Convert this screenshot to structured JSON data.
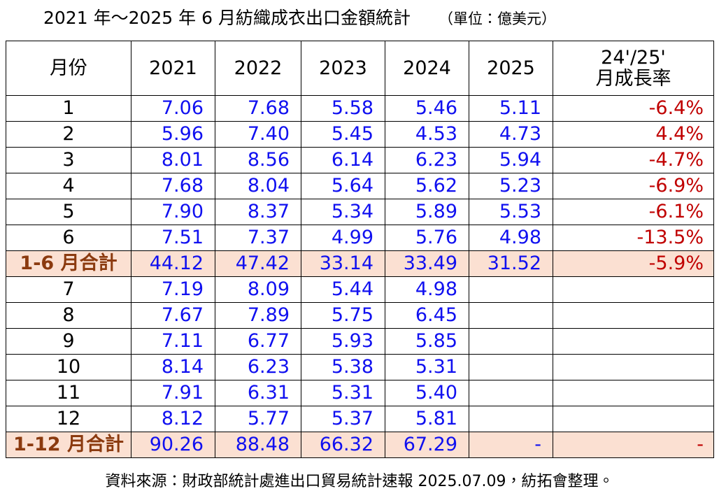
{
  "title": "2021 年～2025 年 6 月紡織成衣出口金額統計",
  "unit": "（單位：億美元）",
  "table": {
    "header": [
      "月份",
      "2021",
      "2022",
      "2023",
      "2024",
      "2025",
      [
        "24'/25'",
        "月成長率"
      ]
    ],
    "rows": [
      {
        "cells": [
          "1",
          "7.06",
          "7.68",
          "5.58",
          "5.46",
          "5.11",
          "-6.4%"
        ]
      },
      {
        "cells": [
          "2",
          "5.96",
          "7.40",
          "5.45",
          "4.53",
          "4.73",
          "4.4%"
        ]
      },
      {
        "cells": [
          "3",
          "8.01",
          "8.56",
          "6.14",
          "6.23",
          "5.94",
          "-4.7%"
        ]
      },
      {
        "cells": [
          "4",
          "7.68",
          "8.04",
          "5.64",
          "5.62",
          "5.23",
          "-6.9%"
        ]
      },
      {
        "cells": [
          "5",
          "7.90",
          "8.37",
          "5.34",
          "5.89",
          "5.53",
          "-6.1%"
        ]
      },
      {
        "cells": [
          "6",
          "7.51",
          "7.37",
          "4.99",
          "5.76",
          "4.98",
          "-13.5%"
        ]
      },
      {
        "cells": [
          "1-6 月合計",
          "44.12",
          "47.42",
          "33.14",
          "33.49",
          "31.52",
          "-5.9%"
        ],
        "total": true
      },
      {
        "cells": [
          "7",
          "7.19",
          "8.09",
          "5.44",
          "4.98"
        ]
      },
      {
        "cells": [
          "8",
          "7.67",
          "7.89",
          "5.75",
          "6.45"
        ]
      },
      {
        "cells": [
          "9",
          "7.11",
          "6.77",
          "5.93",
          "5.85"
        ]
      },
      {
        "cells": [
          "10",
          "8.14",
          "6.23",
          "5.38",
          "5.31"
        ]
      },
      {
        "cells": [
          "11",
          "7.91",
          "6.31",
          "5.31",
          "5.40"
        ]
      },
      {
        "cells": [
          "12",
          "8.12",
          "5.77",
          "5.37",
          "5.81"
        ]
      },
      {
        "cells": [
          "1-12 月合計",
          "90.26",
          "88.48",
          "66.32",
          "67.29",
          "-",
          "-"
        ],
        "total": true
      }
    ]
  },
  "footer": "資料來源：財政部統計處進出口貿易統計速報 2025.07.09，紡拓會整理。"
}
